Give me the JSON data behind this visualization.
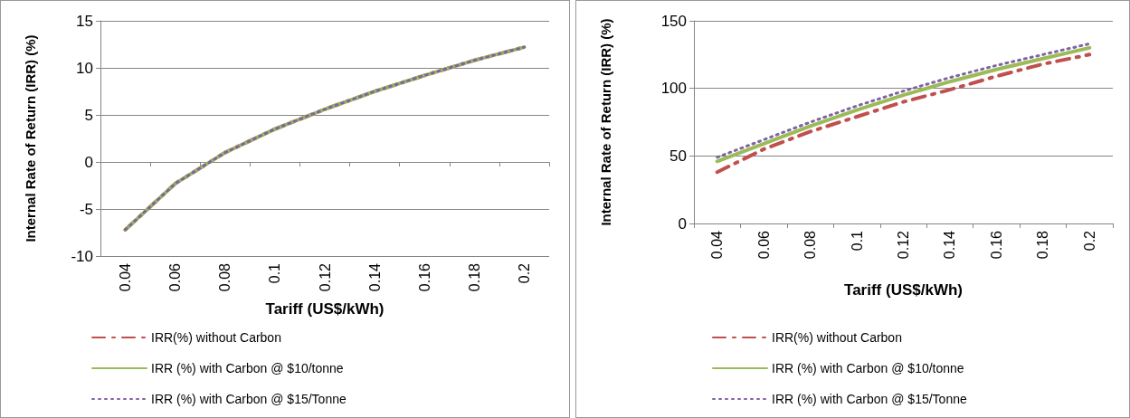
{
  "chart_data": [
    {
      "type": "line",
      "xlabel": "Tariff (US$/kWh)",
      "ylabel": "Internal Rate of Return (IRR) (%)",
      "categories": [
        "0.04",
        "0.06",
        "0.08",
        "0.1",
        "0.12",
        "0.14",
        "0.16",
        "0.18",
        "0.2"
      ],
      "ylim": [
        -10,
        15
      ],
      "yticks": [
        -10,
        -5,
        0,
        5,
        10,
        15
      ],
      "grid": "y",
      "legend": "bottom",
      "marker": "none",
      "series": [
        {
          "name": "IRR(%) without Carbon",
          "color": "#c0504d",
          "line_style": "dashed",
          "values": [
            -7.2,
            -2.3,
            1.0,
            3.5,
            5.6,
            7.5,
            9.2,
            10.8,
            12.2
          ]
        },
        {
          "name": "IRR (%) with Carbon @ $10/tonne",
          "color": "#9bbb59",
          "line_style": "solid",
          "values": [
            -7.2,
            -2.3,
            1.0,
            3.5,
            5.6,
            7.5,
            9.2,
            10.8,
            12.2
          ]
        },
        {
          "name": "IRR (%) with Carbon @ $15/Tonne",
          "color": "#8064a2",
          "line_style": "dotted",
          "values": [
            -7.2,
            -2.3,
            1.0,
            3.5,
            5.6,
            7.5,
            9.2,
            10.8,
            12.2
          ]
        }
      ]
    },
    {
      "type": "line",
      "xlabel": "Tariff (US$/kWh)",
      "ylabel": "Internal Rate of Return (IRR) (%)",
      "categories": [
        "0.04",
        "0.06",
        "0.08",
        "0.1",
        "0.12",
        "0.14",
        "0.16",
        "0.18",
        "0.2"
      ],
      "ylim": [
        0,
        150
      ],
      "yticks": [
        0,
        50,
        100,
        150
      ],
      "grid": "y",
      "legend": "bottom",
      "marker": "none",
      "series": [
        {
          "name": "IRR(%) without Carbon",
          "color": "#c0504d",
          "line_style": "dashed",
          "values": [
            38,
            55,
            68,
            79,
            90,
            99,
            109,
            118,
            125
          ]
        },
        {
          "name": "IRR (%) with Carbon @ $10/tonne",
          "color": "#9bbb59",
          "line_style": "solid",
          "values": [
            46,
            59,
            72,
            84,
            95,
            105,
            114,
            122,
            130
          ]
        },
        {
          "name": "IRR (%) with Carbon @ $15/Tonne",
          "color": "#8064a2",
          "line_style": "dotted",
          "values": [
            49,
            62,
            75,
            87,
            98,
            108,
            117,
            125,
            133
          ]
        }
      ]
    }
  ]
}
